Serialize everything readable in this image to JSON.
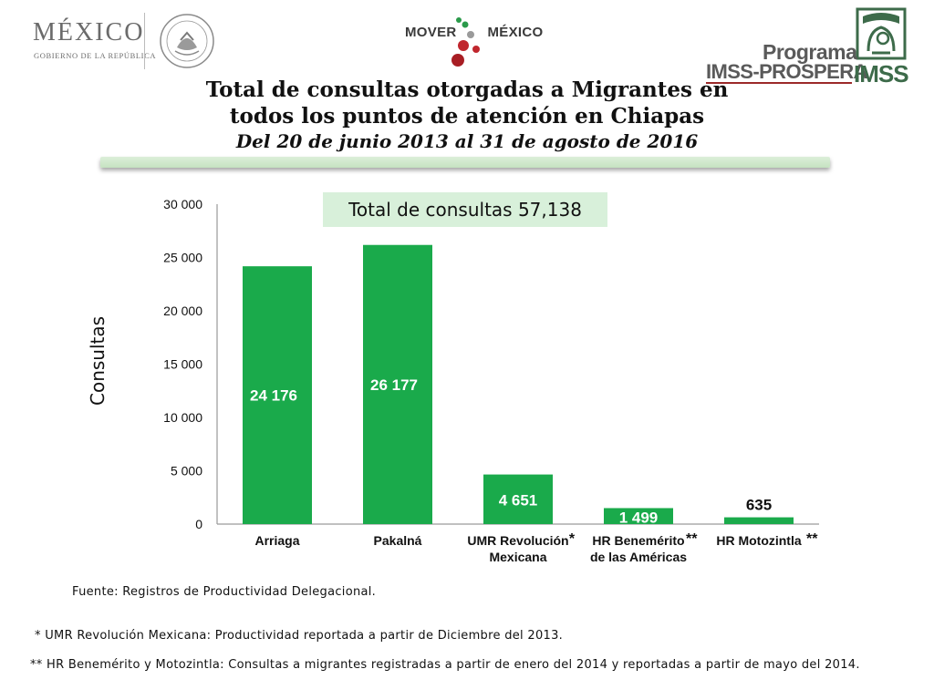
{
  "header": {
    "mexico_logo": {
      "word": "MÉXICO",
      "sub": "GOBIERNO DE LA REPÚBLICA"
    },
    "mover_logo": {
      "left": "MOVER",
      "right": "MÉXICO"
    },
    "imss_logo": {
      "programa": "Programa",
      "prospera": "IMSS-PROSPERA",
      "imss": "IMSS"
    }
  },
  "title": {
    "line1": "Total de consultas otorgadas a Migrantes en",
    "line2": "todos los puntos de atención en Chiapas",
    "subtitle": "Del 20 de junio 2013 al 31 de agosto de 2016"
  },
  "total_label": "Total de consultas 57,138",
  "chart_data": {
    "type": "bar",
    "ylabel": "Consultas",
    "ylim": [
      0,
      30000
    ],
    "yticks": [
      0,
      5000,
      10000,
      15000,
      20000,
      25000,
      30000
    ],
    "ytick_labels": [
      "0",
      "5 000",
      "10 000",
      "15 000",
      "20 000",
      "25 000",
      "30 000"
    ],
    "categories": [
      [
        "Arriaga"
      ],
      [
        "Pakalná"
      ],
      [
        "UMR Revolución",
        "Mexicana"
      ],
      [
        "HR Benemérito",
        "de las Américas"
      ],
      [
        "HR Motozintla"
      ]
    ],
    "category_marks": [
      "",
      "",
      "*",
      "**",
      "**"
    ],
    "values": [
      24176,
      26177,
      4651,
      1499,
      635
    ],
    "value_labels": [
      "24 176",
      "26 177",
      "4 651",
      "1 499",
      "635"
    ],
    "bar_color": "#1aaa4b",
    "grid": false,
    "legend": "none"
  },
  "footnotes": {
    "source": "Fuente: Registros de Productividad Delegacional.",
    "note1": "* UMR Revolución Mexicana: Productividad reportada a partir de Diciembre del 2013.",
    "note2": "** HR Benemérito y Motozintla: Consultas a migrantes registradas a partir de enero del 2014 y reportadas a partir de mayo del 2014."
  }
}
